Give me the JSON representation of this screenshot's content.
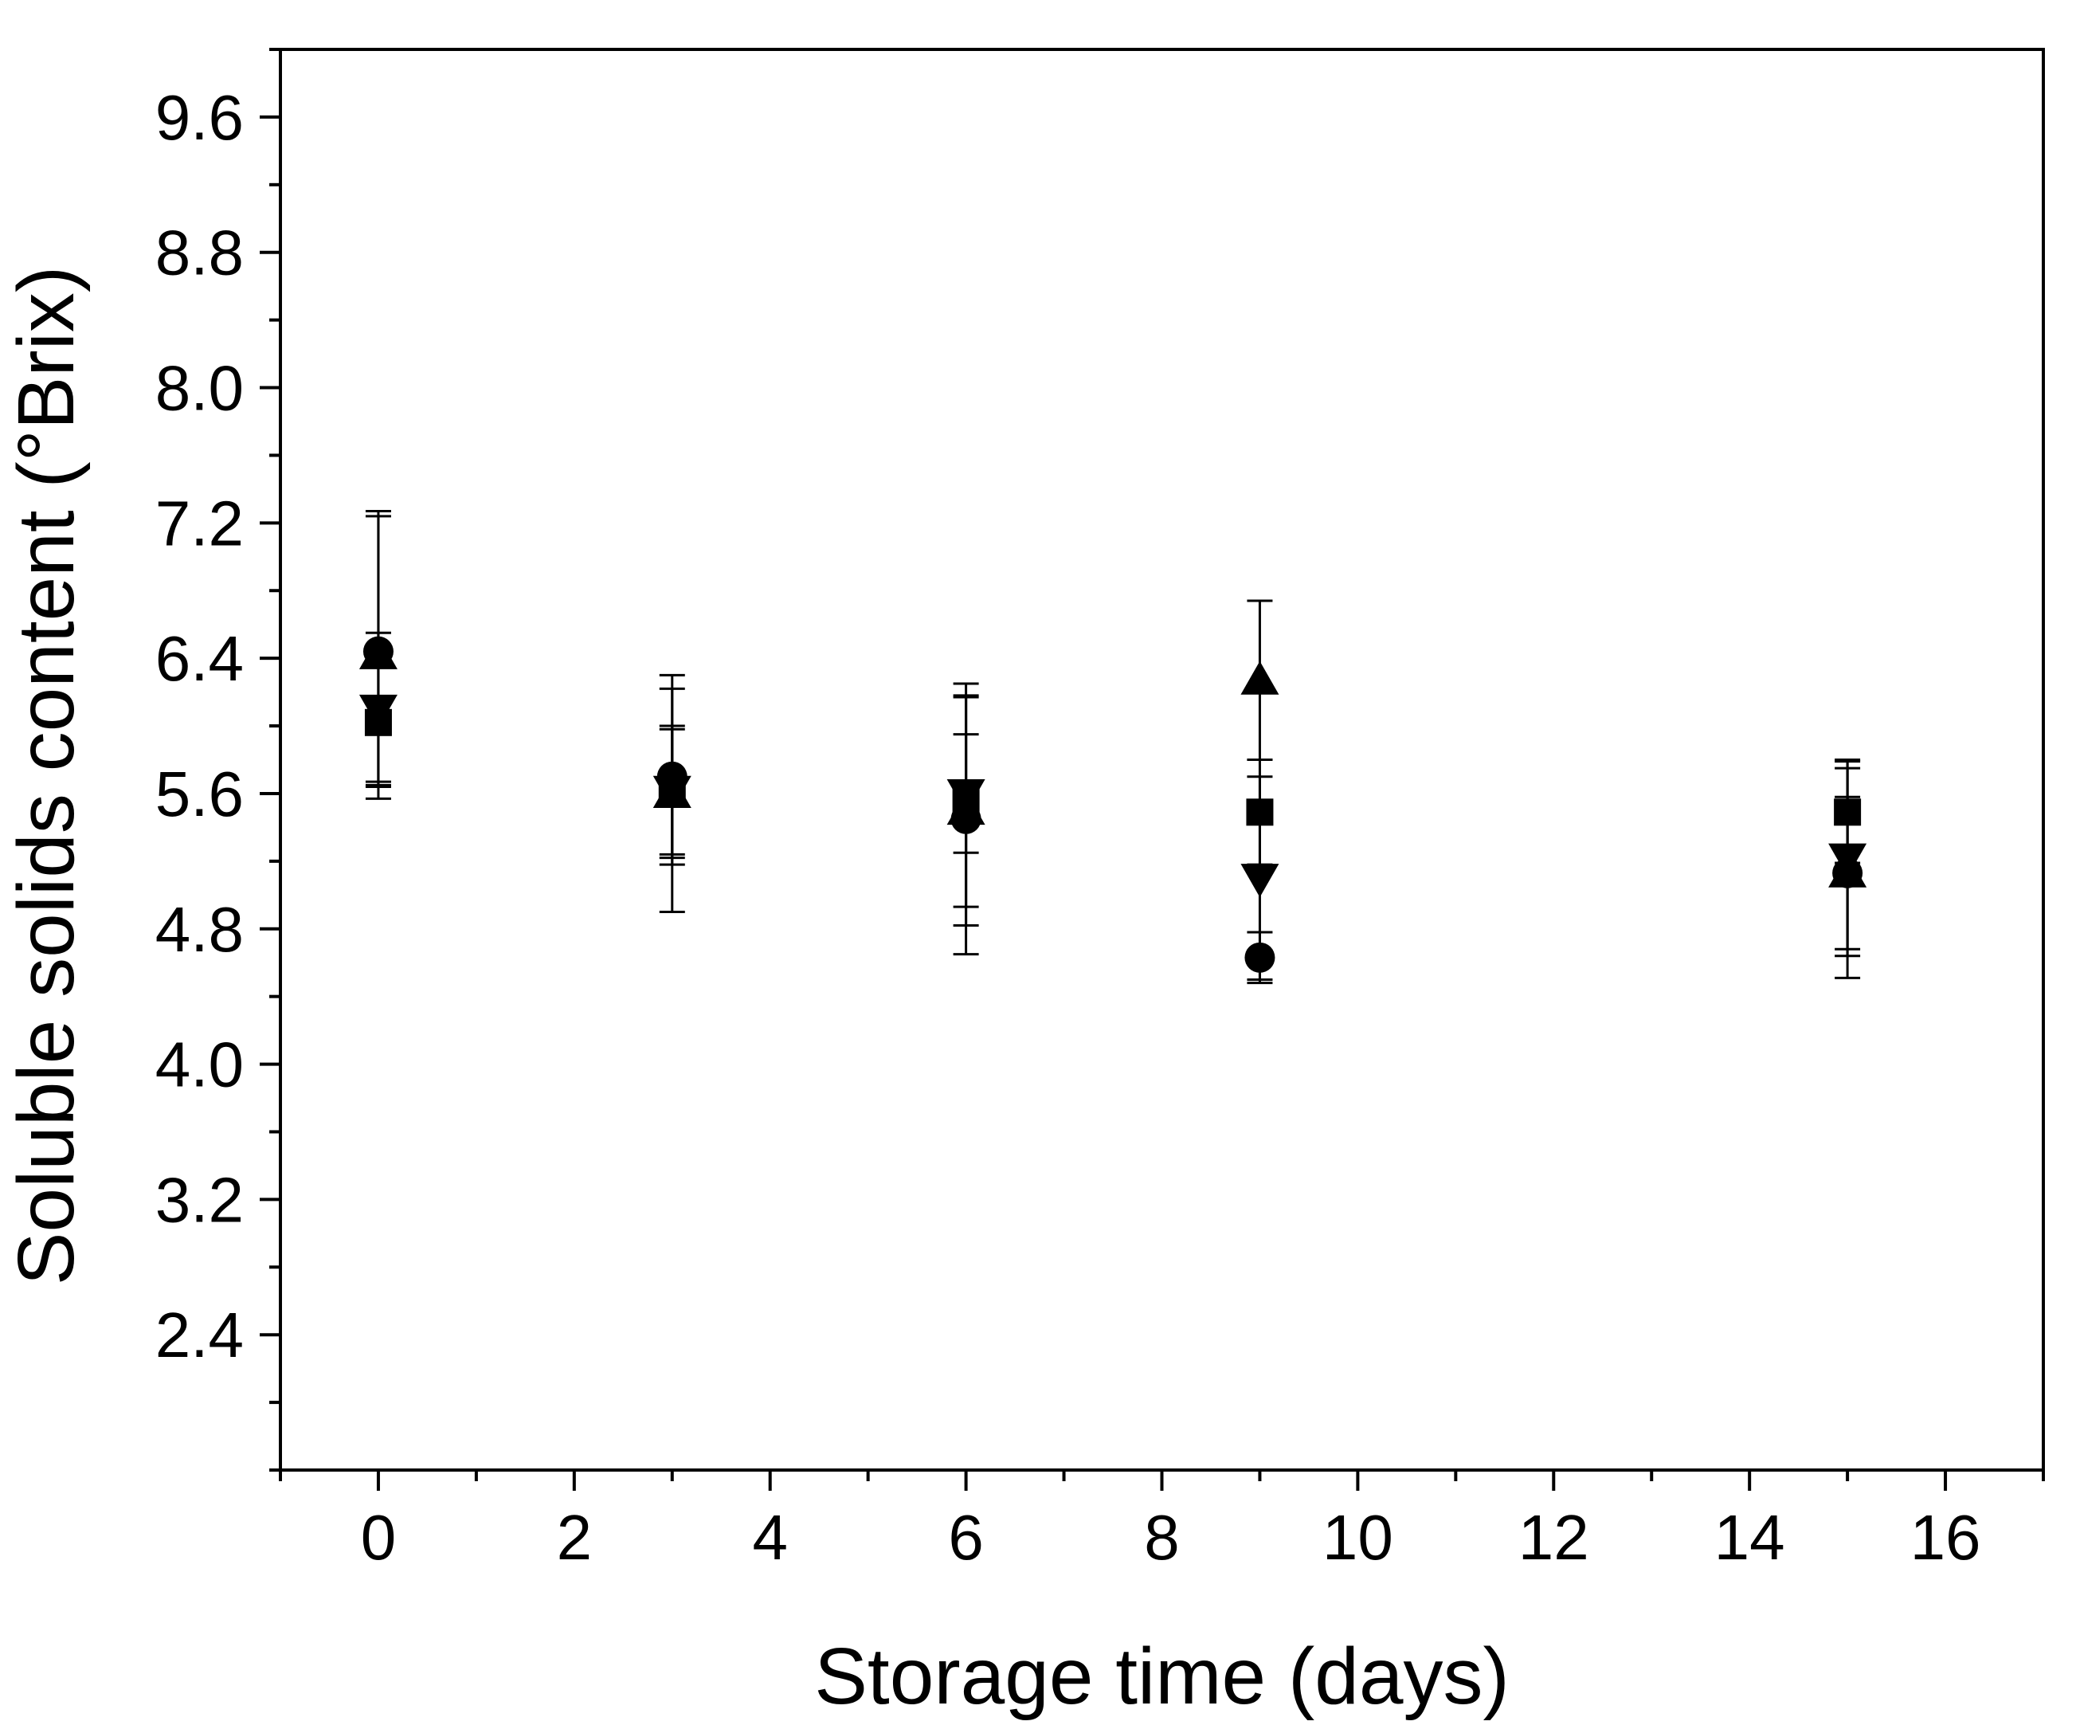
{
  "chart_data": {
    "type": "scatter",
    "title": "",
    "xlabel": "Storage time (days)",
    "ylabel": "Soluble solids content (°Brix)",
    "xlim": [
      -1,
      17
    ],
    "ylim": [
      1.6,
      10.0
    ],
    "x_ticks": [
      "0",
      "2",
      "4",
      "6",
      "8",
      "10",
      "12",
      "14",
      "16"
    ],
    "y_ticks": [
      "2.4",
      "3.2",
      "4.0",
      "4.8",
      "5.6",
      "6.4",
      "7.2",
      "8.0",
      "8.8",
      "9.6"
    ],
    "grid": false,
    "legend": "none",
    "series": [
      {
        "marker": "square",
        "points": [
          {
            "x": 0,
            "y": 6.02,
            "err": 0.35
          },
          {
            "x": 3,
            "y": 5.6,
            "err": 0.38
          },
          {
            "x": 6,
            "y": 5.55,
            "err": 0.62
          },
          {
            "x": 9,
            "y": 5.49,
            "err": 0.31
          },
          {
            "x": 15,
            "y": 5.49,
            "err": 0.3
          }
        ]
      },
      {
        "marker": "circle",
        "points": [
          {
            "x": 0,
            "y": 6.44,
            "err": 0.8
          },
          {
            "x": 3,
            "y": 5.7,
            "err": 0.52
          },
          {
            "x": 6,
            "y": 5.45,
            "err": 0.8
          },
          {
            "x": 9,
            "y": 4.63,
            "err": 0.15
          },
          {
            "x": 15,
            "y": 5.13,
            "err": 0.45
          }
        ]
      },
      {
        "marker": "triangle-up",
        "points": [
          {
            "x": 0,
            "y": 6.42,
            "err": 0.85
          },
          {
            "x": 3,
            "y": 5.6,
            "err": 0.7
          },
          {
            "x": 6,
            "y": 5.5,
            "err": 0.68
          },
          {
            "x": 9,
            "y": 6.27,
            "err": 0.47
          },
          {
            "x": 15,
            "y": 5.13,
            "err": 0.62
          }
        ]
      },
      {
        "marker": "triangle-down",
        "points": [
          {
            "x": 0,
            "y": 6.1,
            "err": 0.45
          },
          {
            "x": 3,
            "y": 5.62,
            "err": 0.38
          },
          {
            "x": 6,
            "y": 5.6,
            "err": 0.35
          },
          {
            "x": 9,
            "y": 5.1,
            "err": 0.6
          },
          {
            "x": 15,
            "y": 5.22,
            "err": 0.58
          }
        ]
      }
    ]
  }
}
